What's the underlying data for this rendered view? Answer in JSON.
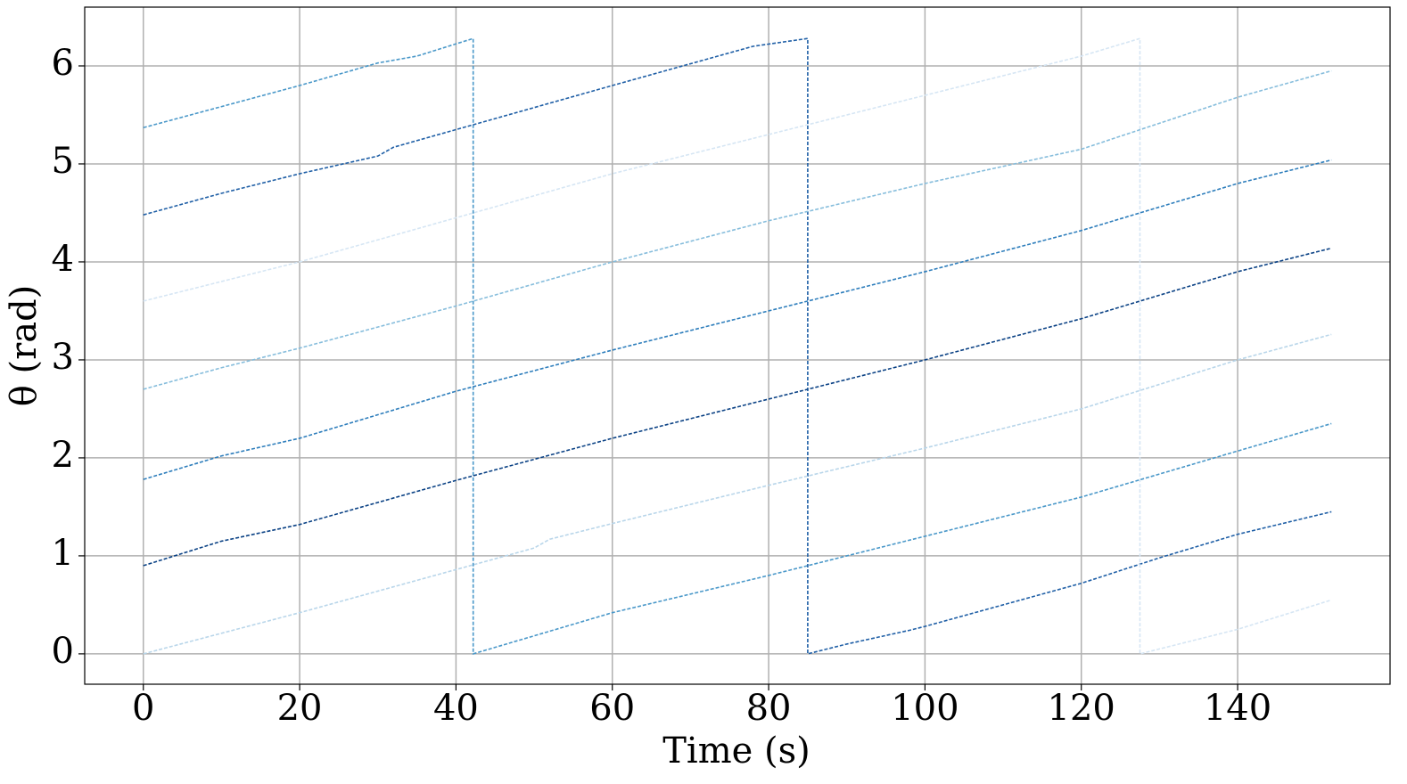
{
  "chart_data": {
    "type": "line",
    "x_label": "Time (s)",
    "y_label": "θ (rad)",
    "xlim": [
      -7.5,
      159.5
    ],
    "ylim": [
      -0.31,
      6.6
    ],
    "xticks": [
      0,
      20,
      40,
      60,
      80,
      100,
      120,
      140
    ],
    "yticks": [
      0,
      1,
      2,
      3,
      4,
      5,
      6
    ],
    "grid": true,
    "line_style": "dashed",
    "series": [
      {
        "color": "#4a98c9",
        "x": [
          0,
          20,
          30,
          35,
          42.2,
          42.2,
          60,
          80,
          100,
          120,
          140,
          152
        ],
        "values": [
          5.37,
          5.8,
          6.03,
          6.1,
          6.28,
          0,
          0.42,
          0.8,
          1.2,
          1.6,
          2.07,
          2.35
        ]
      },
      {
        "color": "#1f5fa6",
        "x": [
          0,
          10,
          20,
          30,
          32,
          40,
          60,
          78,
          85,
          85,
          90,
          98,
          100,
          120,
          130,
          140,
          152
        ],
        "values": [
          4.48,
          4.7,
          4.9,
          5.08,
          5.17,
          5.35,
          5.8,
          6.2,
          6.28,
          0,
          0.1,
          0.24,
          0.28,
          0.72,
          0.98,
          1.22,
          1.45
        ]
      },
      {
        "color": "#d6e6f4",
        "x": [
          0,
          20,
          40,
          60,
          80,
          100,
          120,
          127.5,
          127.5,
          140,
          152
        ],
        "values": [
          3.6,
          4.0,
          4.45,
          4.9,
          5.3,
          5.7,
          6.1,
          6.28,
          0,
          0.25,
          0.55
        ]
      },
      {
        "color": "#86bddc",
        "x": [
          0,
          10,
          20,
          40,
          60,
          80,
          100,
          120,
          140,
          152
        ],
        "values": [
          2.7,
          2.92,
          3.12,
          3.55,
          4.0,
          4.42,
          4.8,
          5.15,
          5.68,
          5.95
        ]
      },
      {
        "color": "#2e7ebc",
        "x": [
          0,
          10,
          20,
          40,
          60,
          80,
          100,
          120,
          140,
          152
        ],
        "values": [
          1.78,
          2.02,
          2.2,
          2.68,
          3.1,
          3.5,
          3.9,
          4.32,
          4.8,
          5.04
        ]
      },
      {
        "color": "#0b4285",
        "x": [
          0,
          10,
          20,
          40,
          60,
          80,
          100,
          120,
          140,
          152
        ],
        "values": [
          0.9,
          1.15,
          1.32,
          1.77,
          2.2,
          2.6,
          3.0,
          3.42,
          3.9,
          4.14
        ]
      },
      {
        "color": "#b9d6ea",
        "x": [
          0,
          20,
          40,
          50,
          52,
          60,
          80,
          100,
          120,
          140,
          152
        ],
        "values": [
          0,
          0.42,
          0.86,
          1.08,
          1.17,
          1.33,
          1.72,
          2.1,
          2.5,
          3.0,
          3.26
        ]
      }
    ]
  }
}
